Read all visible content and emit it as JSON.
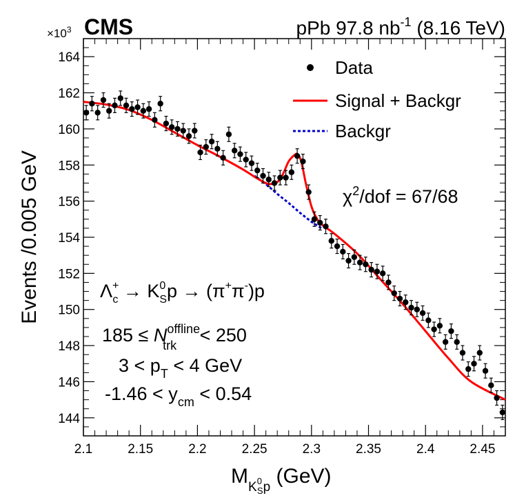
{
  "header": {
    "experiment": "CMS",
    "run_text": "pPb 97.8 nb",
    "run_sup": "-1",
    "energy": " (8.16 TeV)",
    "exponent_prefix": "×10",
    "exponent_power": "3"
  },
  "legend": {
    "data": "Data",
    "signal": "Signal + Backgr",
    "background": "Backgr"
  },
  "annotations": {
    "chi2_symbol": "χ",
    "chi2_power": "2",
    "chi2_value": "/dof = 67/68",
    "decay_lambda": "Λ",
    "decay_sub_c": "c",
    "decay_plus": "+",
    "decay_arrow1": " → K",
    "decay_k_sup": "0",
    "decay_k_sub": "S",
    "decay_p": "p → (π",
    "decay_pi_plus": "+",
    "decay_pi": "π",
    "decay_pi_minus": "-",
    "decay_end": ")p",
    "ntrk_prefix": "185 ≤ ",
    "ntrk_N": "N",
    "ntrk_sup": "offline",
    "ntrk_sub": "trk",
    "ntrk_suffix": " < 250",
    "pt_prefix": "3 < p",
    "pt_sub": "T",
    "pt_suffix": " < 4 GeV",
    "y_prefix": "-1.46 < y",
    "y_sub": "cm",
    "y_suffix": " < 0.54"
  },
  "axes": {
    "ylabel": "Events /0.005 GeV",
    "xlabel_M": "M",
    "xlabel_sub_K": "K",
    "xlabel_sub_K_sup": "0",
    "xlabel_sub_K_sub": "S",
    "xlabel_sub_p": "p",
    "xlabel_unit": " (GeV)"
  },
  "colors": {
    "signal": "#ff0000",
    "background": "#0000cc",
    "data": "#000000"
  },
  "chart_data": {
    "type": "scatter",
    "xlim": [
      2.1,
      2.47
    ],
    "ylim": [
      143.0,
      165.0
    ],
    "y_scale_note": "×10^3",
    "xticks": [
      2.1,
      2.15,
      2.2,
      2.25,
      2.3,
      2.35,
      2.4,
      2.45
    ],
    "xtick_labels": [
      "2.1",
      "2.15",
      "2.2",
      "2.25",
      "2.3",
      "2.35",
      "2.4",
      "2.45"
    ],
    "yticks": [
      144,
      146,
      148,
      150,
      152,
      154,
      156,
      158,
      160,
      162,
      164
    ],
    "ytick_labels": [
      "144",
      "146",
      "148",
      "150",
      "152",
      "154",
      "156",
      "158",
      "160",
      "162",
      "164"
    ],
    "series": [
      {
        "name": "Data",
        "kind": "points_with_errors",
        "x": [
          2.1025,
          2.1075,
          2.1125,
          2.1175,
          2.1225,
          2.1275,
          2.1325,
          2.1375,
          2.1425,
          2.1475,
          2.1525,
          2.1575,
          2.1625,
          2.1675,
          2.1725,
          2.1775,
          2.1825,
          2.1875,
          2.1925,
          2.1975,
          2.2025,
          2.2075,
          2.2125,
          2.2175,
          2.2225,
          2.2275,
          2.2325,
          2.2375,
          2.2425,
          2.2475,
          2.2525,
          2.2575,
          2.2625,
          2.2675,
          2.2725,
          2.2775,
          2.2825,
          2.2875,
          2.2925,
          2.2975,
          2.3025,
          2.3075,
          2.3125,
          2.3175,
          2.3225,
          2.3275,
          2.3325,
          2.3375,
          2.3425,
          2.3475,
          2.3525,
          2.3575,
          2.3625,
          2.3675,
          2.3725,
          2.3775,
          2.3825,
          2.3875,
          2.3925,
          2.3975,
          2.4025,
          2.4075,
          2.4125,
          2.4175,
          2.4225,
          2.4275,
          2.4325,
          2.4375,
          2.4425,
          2.4475,
          2.4525,
          2.4575,
          2.4625,
          2.4675
        ],
        "y": [
          160.9,
          161.4,
          160.9,
          161.6,
          161.0,
          161.3,
          161.7,
          161.3,
          161.1,
          161.2,
          161.0,
          161.1,
          160.5,
          161.4,
          160.3,
          160.1,
          160.0,
          159.9,
          159.6,
          159.9,
          158.7,
          159.0,
          159.3,
          158.9,
          158.4,
          159.7,
          158.8,
          158.6,
          158.3,
          158.1,
          157.7,
          157.4,
          157.2,
          157.0,
          157.3,
          157.3,
          157.6,
          158.5,
          158.2,
          156.5,
          155.0,
          154.8,
          154.6,
          153.8,
          153.5,
          153.2,
          152.7,
          152.9,
          152.6,
          152.5,
          152.2,
          152.1,
          152.0,
          151.5,
          150.9,
          150.6,
          150.4,
          150.1,
          150.0,
          149.8,
          149.4,
          148.9,
          149.1,
          148.2,
          148.8,
          148.2,
          147.6,
          146.7,
          147.0,
          147.6,
          146.6,
          145.8,
          145.1,
          144.3
        ],
        "yerr": 0.4
      },
      {
        "name": "Signal + Backgr",
        "kind": "line",
        "x": [
          2.1,
          2.12,
          2.14,
          2.16,
          2.18,
          2.2,
          2.22,
          2.24,
          2.25,
          2.26,
          2.265,
          2.27,
          2.275,
          2.28,
          2.285,
          2.288,
          2.291,
          2.295,
          2.3,
          2.305,
          2.31,
          2.32,
          2.34,
          2.36,
          2.38,
          2.4,
          2.42,
          2.44,
          2.47
        ],
        "y": [
          161.5,
          161.35,
          161.05,
          160.5,
          159.8,
          159.1,
          158.45,
          157.75,
          157.35,
          157.0,
          156.95,
          157.05,
          157.5,
          158.2,
          158.55,
          158.6,
          158.2,
          157.0,
          155.7,
          155.0,
          154.65,
          154.2,
          153.1,
          151.7,
          150.3,
          148.8,
          147.3,
          146.0,
          145.0
        ]
      },
      {
        "name": "Backgr",
        "kind": "dashed_line",
        "x": [
          2.25,
          2.26,
          2.27,
          2.28,
          2.29,
          2.3,
          2.31
        ],
        "y": [
          157.4,
          156.95,
          156.4,
          155.9,
          155.35,
          154.85,
          154.45
        ]
      }
    ]
  }
}
